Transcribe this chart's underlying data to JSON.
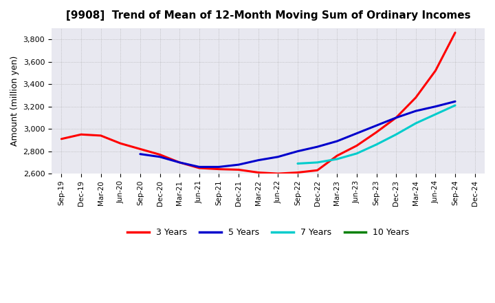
{
  "title": "[9908]  Trend of Mean of 12-Month Moving Sum of Ordinary Incomes",
  "ylabel": "Amount (million yen)",
  "background_color": "#ffffff",
  "grid_color": "#aaaaaa",
  "ylim": [
    2600,
    3900
  ],
  "yticks": [
    2600,
    2800,
    3000,
    3200,
    3400,
    3600,
    3800
  ],
  "x_labels": [
    "Sep-19",
    "Dec-19",
    "Mar-20",
    "Jun-20",
    "Sep-20",
    "Dec-20",
    "Mar-21",
    "Jun-21",
    "Sep-21",
    "Dec-21",
    "Mar-22",
    "Jun-22",
    "Sep-22",
    "Dec-22",
    "Mar-23",
    "Jun-23",
    "Sep-23",
    "Dec-23",
    "Mar-24",
    "Jun-24",
    "Sep-24",
    "Dec-24"
  ],
  "series": {
    "3 Years": {
      "color": "#ff0000",
      "linewidth": 2.2,
      "data": [
        2910,
        2950,
        2940,
        2870,
        2820,
        2770,
        2700,
        2650,
        2640,
        2635,
        2610,
        2600,
        2610,
        2630,
        2760,
        2850,
        2970,
        3100,
        3280,
        3520,
        3860,
        null
      ]
    },
    "5 Years": {
      "color": "#0000cc",
      "linewidth": 2.2,
      "data": [
        null,
        null,
        null,
        null,
        2775,
        2750,
        2700,
        2660,
        2660,
        2680,
        2720,
        2750,
        2800,
        2840,
        2890,
        2960,
        3030,
        3100,
        3160,
        3200,
        3245,
        null
      ]
    },
    "7 Years": {
      "color": "#00cccc",
      "linewidth": 2.2,
      "data": [
        null,
        null,
        null,
        null,
        null,
        null,
        null,
        null,
        null,
        null,
        null,
        null,
        2690,
        2700,
        2730,
        2780,
        2860,
        2950,
        3050,
        3130,
        3210,
        null
      ]
    },
    "10 Years": {
      "color": "#008000",
      "linewidth": 2.2,
      "data": [
        null,
        null,
        null,
        null,
        null,
        null,
        null,
        null,
        null,
        null,
        null,
        null,
        null,
        null,
        null,
        null,
        null,
        null,
        null,
        null,
        null,
        null
      ]
    }
  },
  "legend": {
    "entries": [
      "3 Years",
      "5 Years",
      "7 Years",
      "10 Years"
    ],
    "colors": [
      "#ff0000",
      "#0000cc",
      "#00cccc",
      "#008000"
    ]
  }
}
